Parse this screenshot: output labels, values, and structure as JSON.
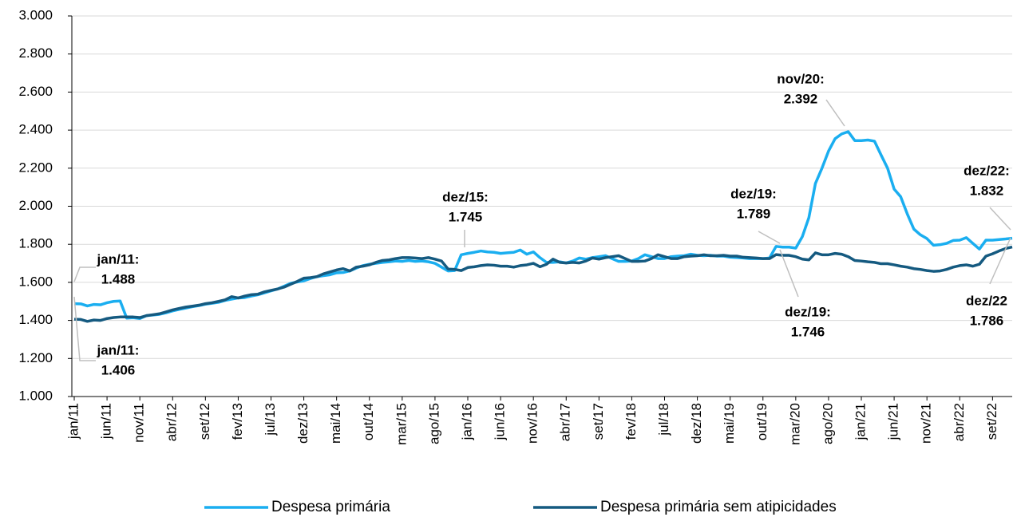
{
  "chart_data": {
    "type": "line",
    "categories": [
      "jan/11",
      null,
      null,
      null,
      null,
      "jun/11",
      null,
      null,
      null,
      null,
      "nov/11",
      null,
      null,
      null,
      null,
      "abr/12",
      null,
      null,
      null,
      null,
      "set/12",
      null,
      null,
      null,
      null,
      "fev/13",
      null,
      null,
      null,
      null,
      "jul/13",
      null,
      null,
      null,
      null,
      "dez/13",
      null,
      null,
      null,
      null,
      "mai/14",
      null,
      null,
      null,
      null,
      "out/14",
      null,
      null,
      null,
      null,
      "mar/15",
      null,
      null,
      null,
      null,
      "ago/15",
      null,
      null,
      null,
      null,
      "jan/16",
      null,
      null,
      null,
      null,
      "jun/16",
      null,
      null,
      null,
      null,
      "nov/16",
      null,
      null,
      null,
      null,
      "abr/17",
      null,
      null,
      null,
      null,
      "set/17",
      null,
      null,
      null,
      null,
      "fev/18",
      null,
      null,
      null,
      null,
      "jul/18",
      null,
      null,
      null,
      null,
      "dez/18",
      null,
      null,
      null,
      null,
      "mai/19",
      null,
      null,
      null,
      null,
      "out/19",
      null,
      null,
      null,
      null,
      "mar/20",
      null,
      null,
      null,
      null,
      "ago/20",
      null,
      null,
      null,
      null,
      "jan/21",
      null,
      null,
      null,
      null,
      "jun/21",
      null,
      null,
      null,
      null,
      "nov/21",
      null,
      null,
      null,
      null,
      "abr/22",
      null,
      null,
      null,
      null,
      "set/22",
      null,
      null,
      null
    ],
    "series": [
      {
        "name": "Despesa primária",
        "color": "#1aaef0",
        "values": [
          1488,
          1487,
          1476,
          1484,
          1482,
          1493,
          1500,
          1502,
          1412,
          1414,
          1410,
          1425,
          1428,
          1432,
          1440,
          1450,
          1458,
          1465,
          1472,
          1478,
          1485,
          1490,
          1495,
          1505,
          1512,
          1518,
          1520,
          1528,
          1535,
          1545,
          1555,
          1565,
          1580,
          1595,
          1602,
          1608,
          1620,
          1630,
          1635,
          1640,
          1650,
          1652,
          1660,
          1675,
          1688,
          1695,
          1700,
          1705,
          1708,
          1712,
          1710,
          1715,
          1710,
          1712,
          1708,
          1700,
          1680,
          1660,
          1662,
          1745,
          1752,
          1758,
          1765,
          1760,
          1758,
          1752,
          1755,
          1758,
          1770,
          1748,
          1760,
          1730,
          1705,
          1705,
          1708,
          1702,
          1712,
          1728,
          1722,
          1730,
          1735,
          1740,
          1725,
          1710,
          1710,
          1712,
          1725,
          1745,
          1735,
          1725,
          1725,
          1735,
          1738,
          1740,
          1748,
          1742,
          1740,
          1742,
          1738,
          1738,
          1732,
          1730,
          1728,
          1725,
          1725,
          1725,
          1728,
          1789,
          1785,
          1785,
          1780,
          1840,
          1940,
          2120,
          2200,
          2290,
          2355,
          2380,
          2392,
          2345,
          2345,
          2348,
          2342,
          2270,
          2200,
          2090,
          2050,
          1960,
          1880,
          1850,
          1830,
          1795,
          1798,
          1805,
          1820,
          1822,
          1835,
          1805,
          1775,
          1822,
          1822,
          1825,
          1828,
          1832
        ]
      },
      {
        "name": "Despesa primária sem atipicidades",
        "color": "#155a80",
        "values": [
          1406,
          1405,
          1395,
          1402,
          1400,
          1410,
          1415,
          1418,
          1418,
          1418,
          1415,
          1425,
          1430,
          1435,
          1445,
          1455,
          1463,
          1470,
          1475,
          1480,
          1488,
          1493,
          1500,
          1508,
          1525,
          1518,
          1528,
          1535,
          1538,
          1550,
          1558,
          1565,
          1575,
          1590,
          1605,
          1622,
          1625,
          1630,
          1645,
          1655,
          1665,
          1672,
          1660,
          1680,
          1685,
          1692,
          1705,
          1715,
          1718,
          1725,
          1730,
          1730,
          1728,
          1725,
          1730,
          1722,
          1712,
          1670,
          1668,
          1662,
          1678,
          1682,
          1688,
          1692,
          1690,
          1685,
          1685,
          1680,
          1688,
          1692,
          1700,
          1682,
          1695,
          1722,
          1705,
          1702,
          1705,
          1702,
          1712,
          1728,
          1722,
          1730,
          1735,
          1740,
          1725,
          1710,
          1710,
          1712,
          1725,
          1745,
          1735,
          1725,
          1725,
          1735,
          1738,
          1740,
          1745,
          1740,
          1740,
          1742,
          1738,
          1738,
          1732,
          1730,
          1728,
          1725,
          1725,
          1746,
          1742,
          1742,
          1735,
          1722,
          1718,
          1755,
          1745,
          1745,
          1752,
          1748,
          1735,
          1715,
          1712,
          1708,
          1705,
          1698,
          1698,
          1692,
          1685,
          1680,
          1672,
          1668,
          1662,
          1658,
          1660,
          1668,
          1680,
          1688,
          1692,
          1685,
          1695,
          1738,
          1750,
          1765,
          1778,
          1786
        ]
      }
    ],
    "ylim": [
      1000,
      3000
    ],
    "yticks": [
      {
        "value": 1000,
        "label": "1.000"
      },
      {
        "value": 1200,
        "label": "1.200"
      },
      {
        "value": 1400,
        "label": "1.400"
      },
      {
        "value": 1600,
        "label": "1.600"
      },
      {
        "value": 1800,
        "label": "1.800"
      },
      {
        "value": 2000,
        "label": "2.000"
      },
      {
        "value": 2200,
        "label": "2.200"
      },
      {
        "value": 2400,
        "label": "2.400"
      },
      {
        "value": 2600,
        "label": "2.600"
      },
      {
        "value": 2800,
        "label": "2.800"
      },
      {
        "value": 3000,
        "label": "3.000"
      }
    ],
    "grid": true,
    "legend": "bottom",
    "annotations": [
      {
        "lines": [
          "jan/11:",
          "1.488"
        ]
      },
      {
        "lines": [
          "jan/11:",
          "1.406"
        ]
      },
      {
        "lines": [
          "dez/15:",
          "1.745"
        ]
      },
      {
        "lines": [
          "dez/19:",
          "1.789"
        ]
      },
      {
        "lines": [
          "dez/19:",
          "1.746"
        ]
      },
      {
        "lines": [
          "nov/20:",
          "2.392"
        ]
      },
      {
        "lines": [
          "dez/22:",
          "1.832"
        ]
      },
      {
        "lines": [
          "dez/22",
          "1.786"
        ]
      }
    ]
  }
}
